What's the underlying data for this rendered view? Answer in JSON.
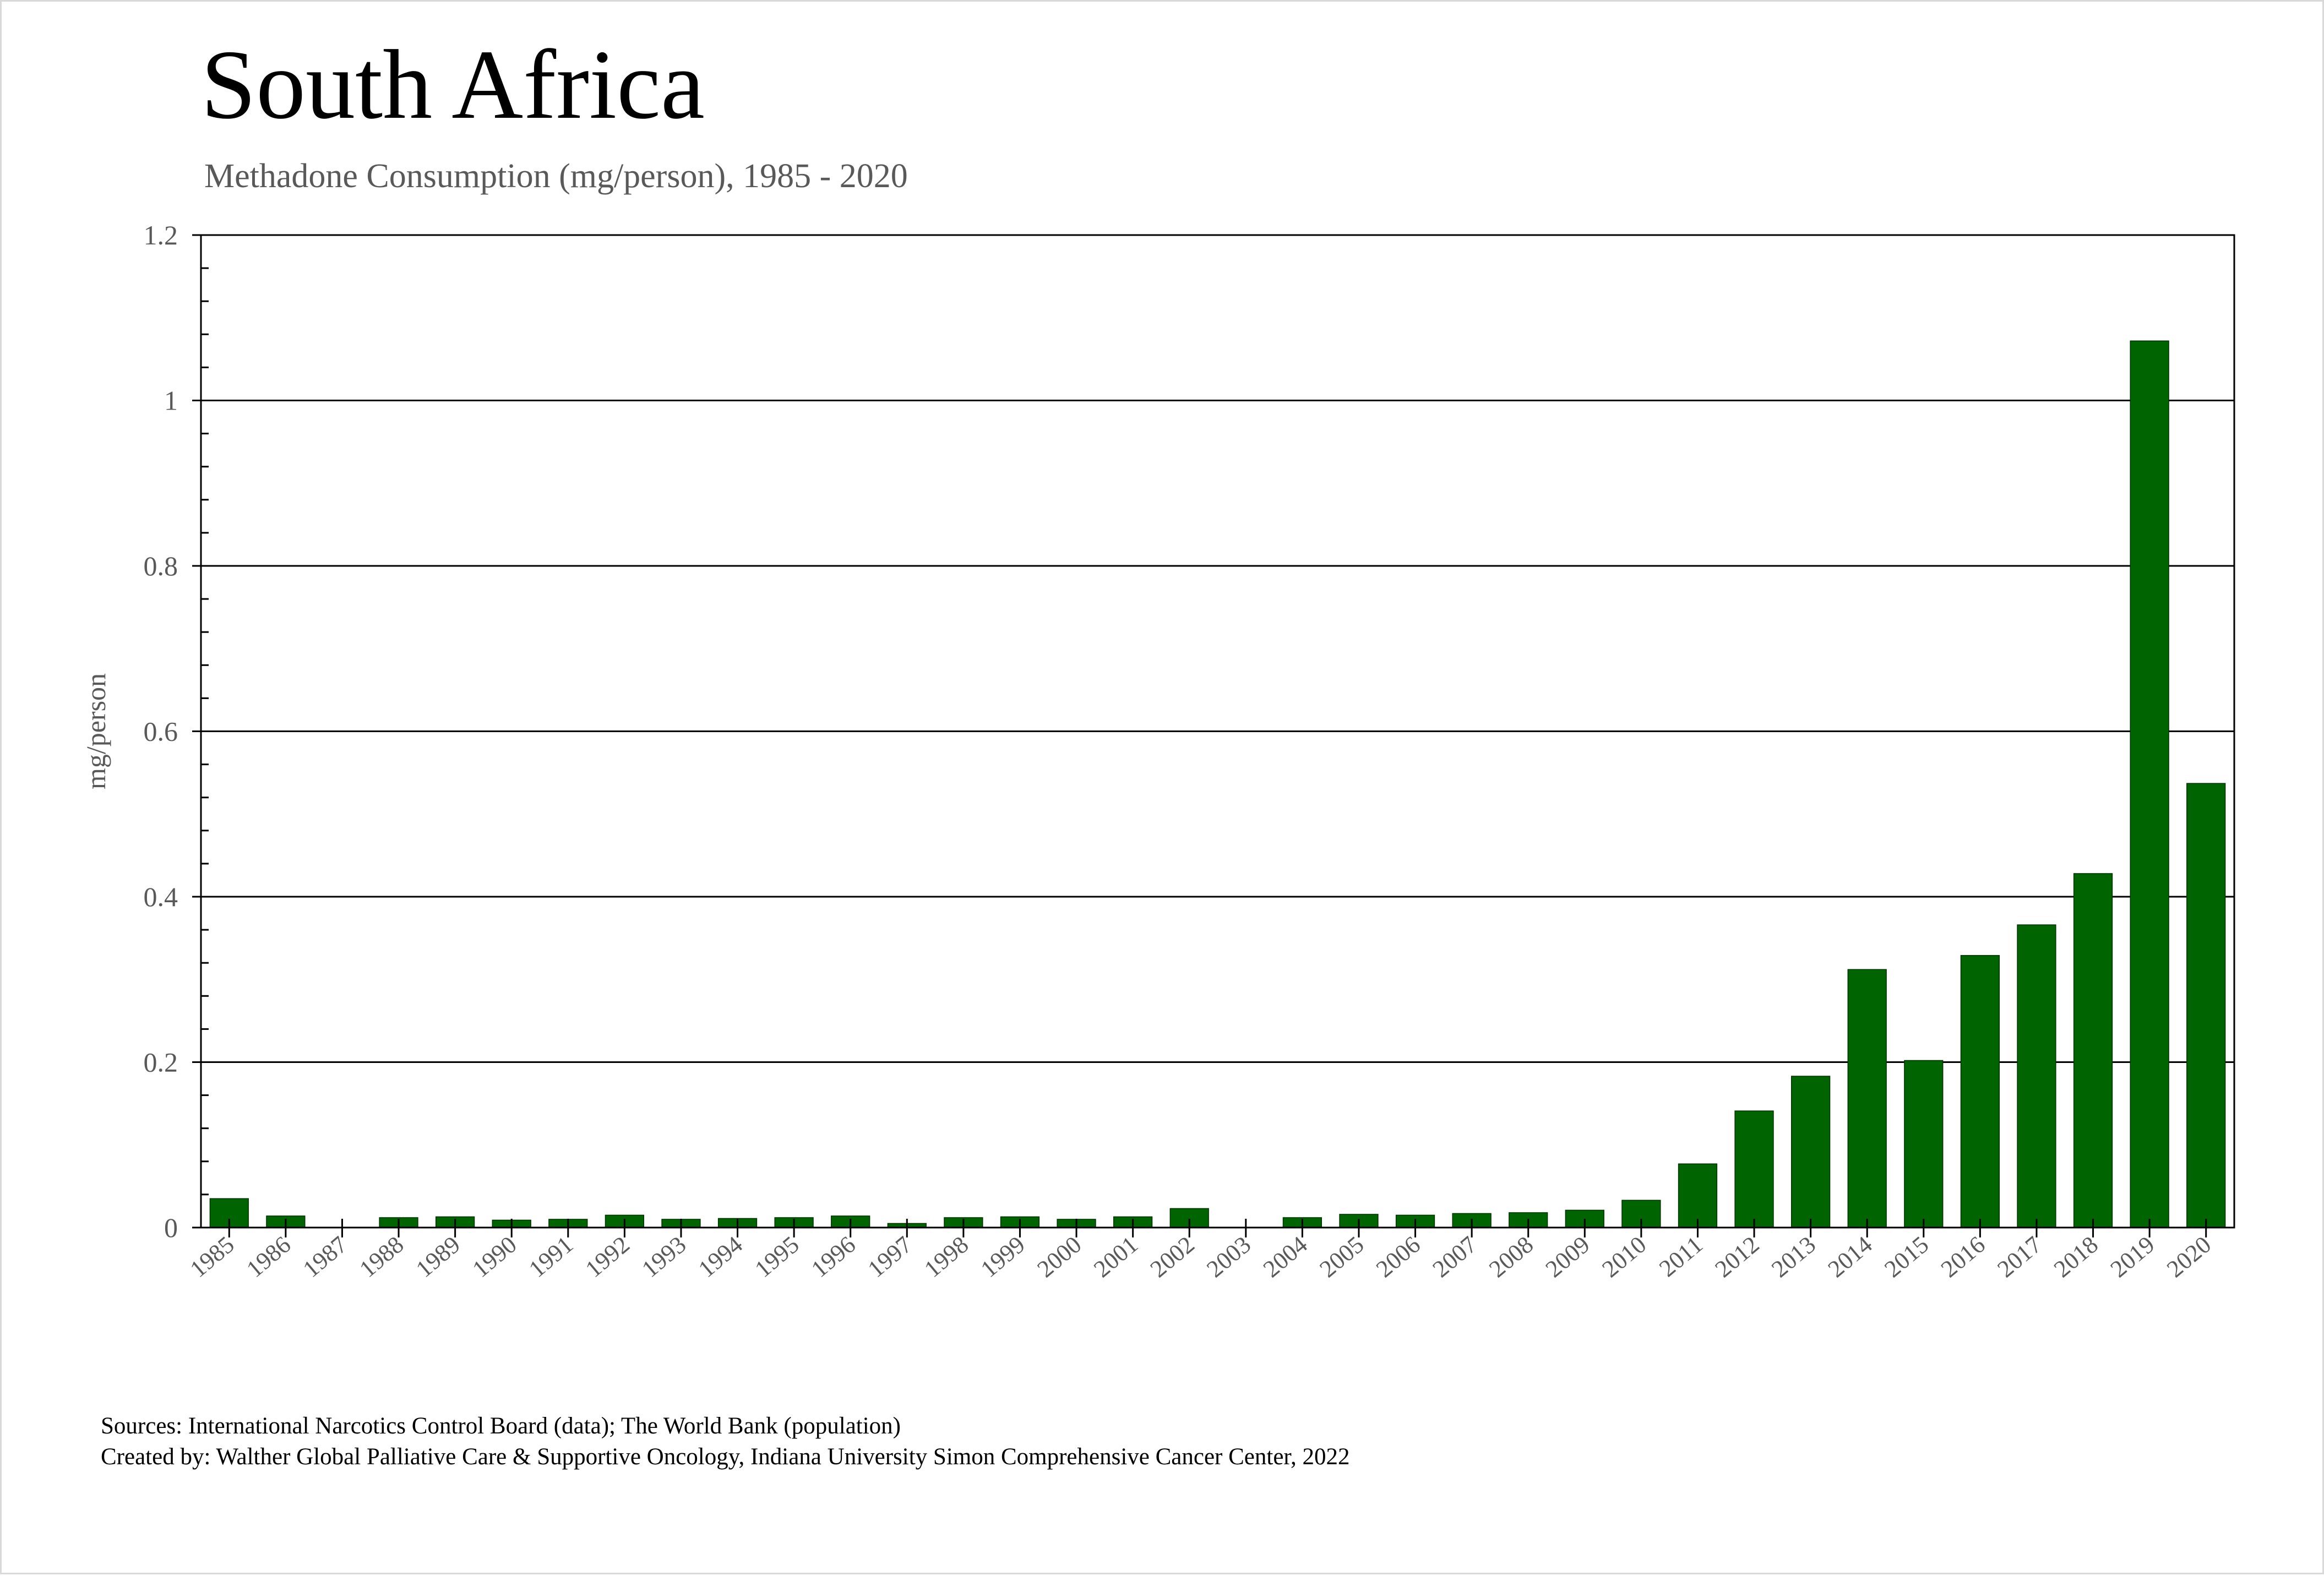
{
  "chart_data": {
    "type": "bar",
    "title": "South Africa",
    "subtitle": "Methadone Consumption (mg/person), 1985 - 2020",
    "xlabel": "",
    "ylabel": "mg/person",
    "ylim": [
      0,
      1.2
    ],
    "yticks": [
      0,
      0.2,
      0.4,
      0.6,
      0.8,
      1,
      1.2
    ],
    "ytick_labels": [
      "0",
      "0.2",
      "0.4",
      "0.6",
      "0.8",
      "1",
      "1.2"
    ],
    "grid": true,
    "legend": "none",
    "bar_color": "#006400",
    "categories": [
      "1985",
      "1986",
      "1987",
      "1988",
      "1989",
      "1990",
      "1991",
      "1992",
      "1993",
      "1994",
      "1995",
      "1996",
      "1997",
      "1998",
      "1999",
      "2000",
      "2001",
      "2002",
      "2003",
      "2004",
      "2005",
      "2006",
      "2007",
      "2008",
      "2009",
      "2010",
      "2011",
      "2012",
      "2013",
      "2014",
      "2015",
      "2016",
      "2017",
      "2018",
      "2019",
      "2020"
    ],
    "values": [
      0.035,
      0.014,
      0.0,
      0.012,
      0.013,
      0.009,
      0.01,
      0.015,
      0.01,
      0.011,
      0.012,
      0.014,
      0.005,
      0.012,
      0.013,
      0.01,
      0.013,
      0.023,
      0.0,
      0.012,
      0.016,
      0.015,
      0.017,
      0.018,
      0.021,
      0.033,
      0.077,
      0.141,
      0.183,
      0.312,
      0.202,
      0.329,
      0.366,
      0.428,
      1.072,
      0.537
    ]
  },
  "footer": {
    "sources": "Sources: International Narcotics Control Board (data); The World Bank (population)",
    "created_by": "Created by: Walther Global Palliative Care & Supportive Oncology, Indiana University Simon Comprehensive Cancer Center, 2022"
  }
}
